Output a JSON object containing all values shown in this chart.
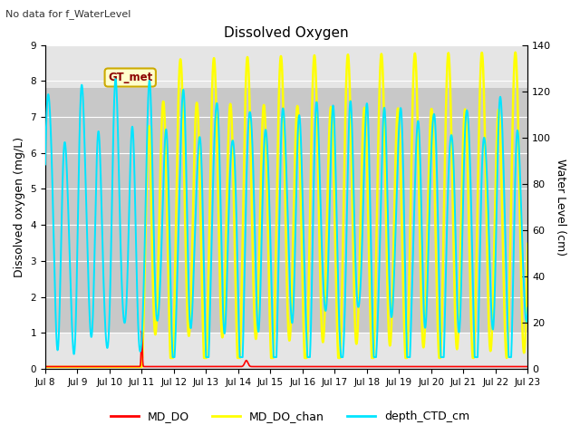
{
  "title": "Dissolved Oxygen",
  "subtitle": "No data for f_WaterLevel",
  "ylabel_left": "Dissolved oxygen (mg/L)",
  "ylabel_right": "Water Level (cm)",
  "ylim_left": [
    0.0,
    9.0
  ],
  "ylim_right": [
    0,
    140
  ],
  "yticks_left": [
    0.0,
    1.0,
    2.0,
    3.0,
    4.0,
    5.0,
    6.0,
    7.0,
    8.0,
    9.0
  ],
  "yticks_right": [
    0,
    20,
    40,
    60,
    80,
    100,
    120,
    140
  ],
  "background_color": "#ffffff",
  "plot_bg_color": "#e5e5e5",
  "shaded_band": [
    1.0,
    7.8
  ],
  "shaded_band_color": "#c8c8c8",
  "grid_color": "#ffffff",
  "annotation_text": "GT_met",
  "annotation_color": "#8b0000",
  "annotation_bg": "#ffffcc",
  "annotation_border": "#ccaa00",
  "colors": {
    "MD_DO": "#ff0000",
    "MD_DO_chan": "#ffff00",
    "depth_CTD_cm": "#00e5ff"
  },
  "linewidths": {
    "MD_DO": 1.2,
    "MD_DO_chan": 1.8,
    "depth_CTD_cm": 1.4
  },
  "day_labels": [
    "Jul 8",
    "Jul 9",
    "Jul 10",
    "Jul 11",
    "Jul 12",
    "Jul 13",
    "Jul 14",
    "Jul 15",
    "Jul 16",
    "Jul 17",
    "Jul 18",
    "Jul 19",
    "Jul 20",
    "Jul 21",
    "Jul 22",
    "Jul 23"
  ],
  "total_days": 15
}
